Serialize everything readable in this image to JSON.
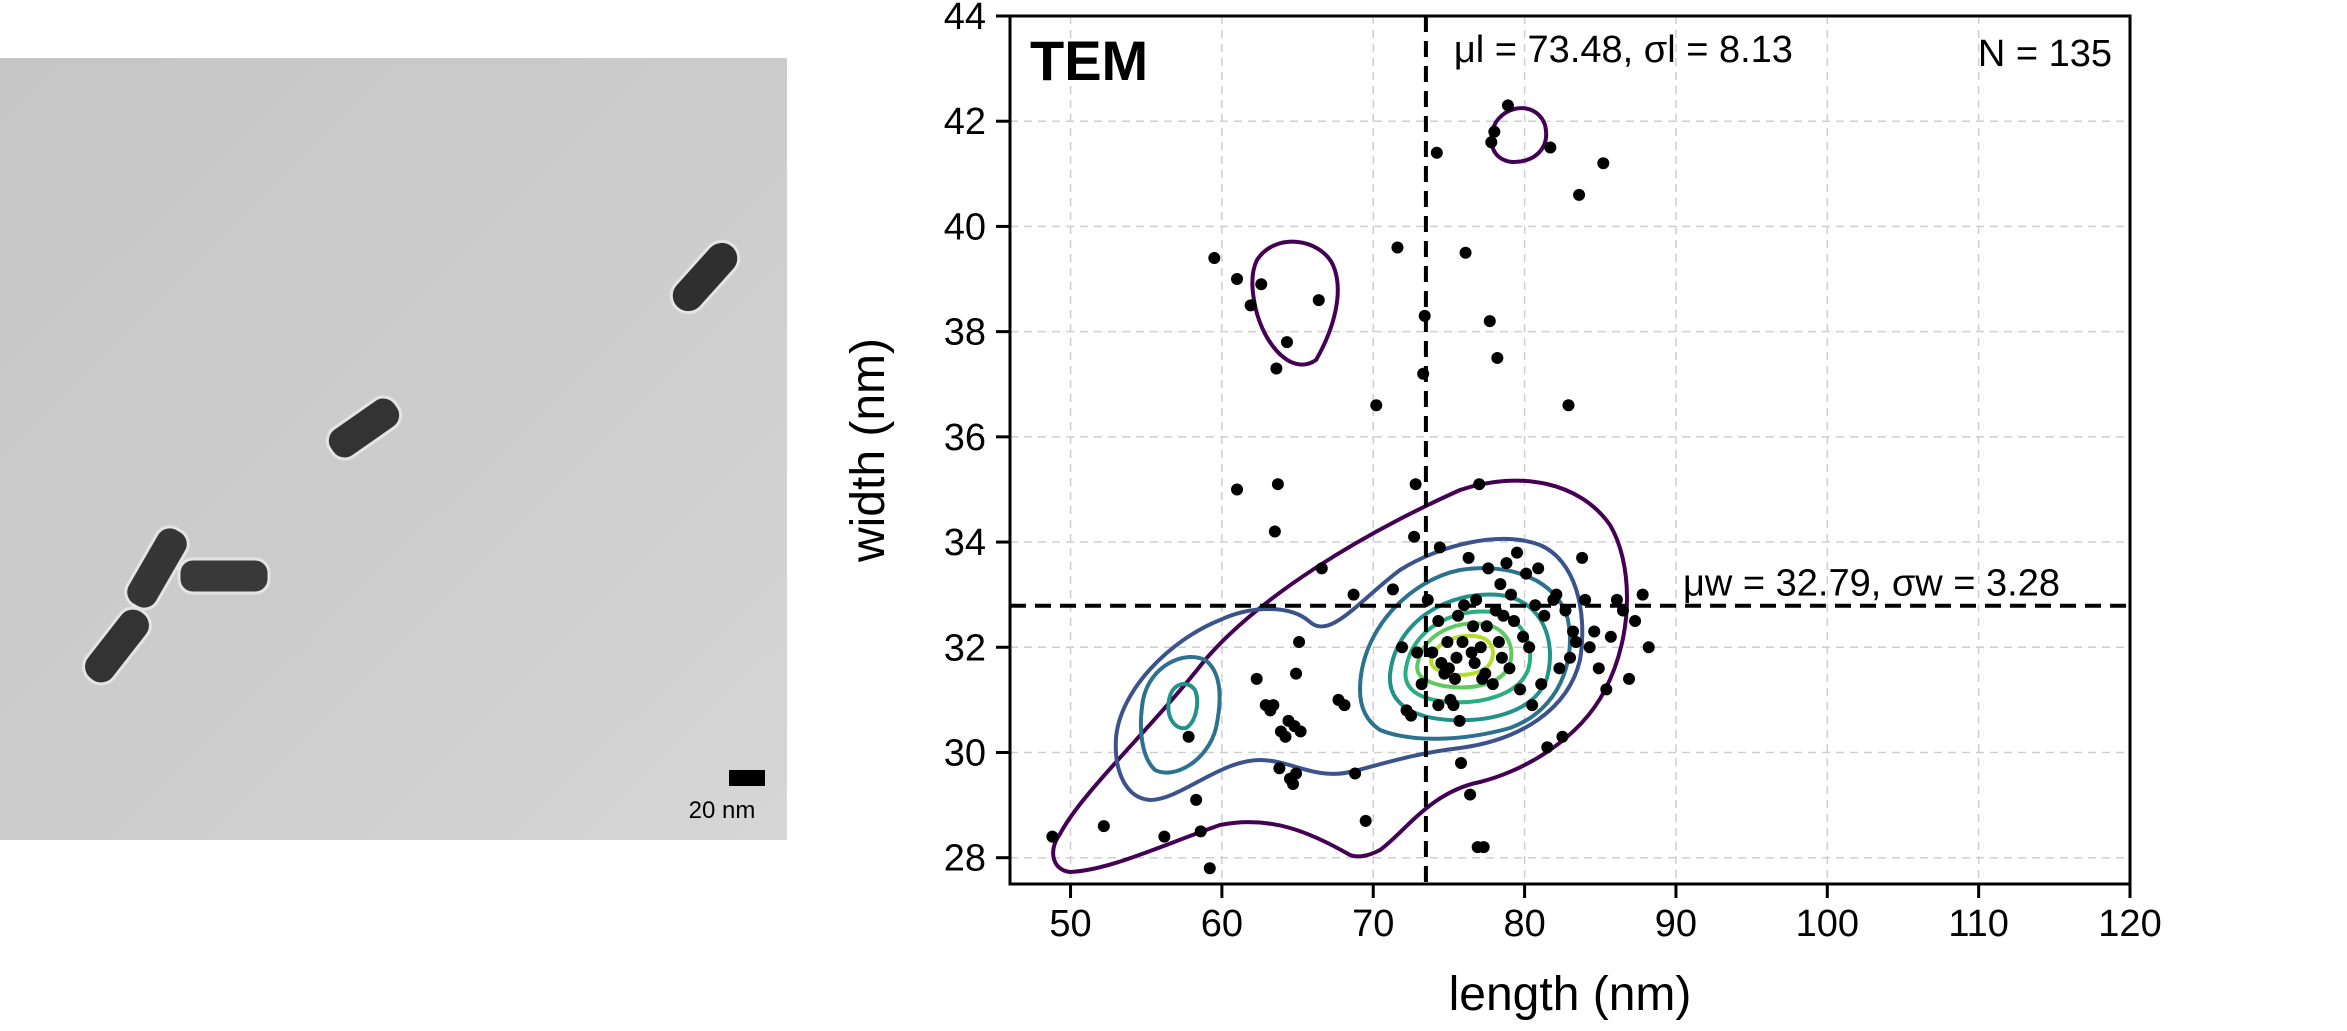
{
  "tem_image": {
    "scale_bar_label": "20 nm",
    "colors": {
      "background": "#cfcfcf",
      "rod": "#4a4a4a",
      "scale_bar": "#000000"
    }
  },
  "chart_data": {
    "type": "scatter",
    "xlabel": "length (nm)",
    "ylabel": "width (nm)",
    "xlim": [
      46,
      120
    ],
    "ylim": [
      27.5,
      44
    ],
    "x_ticks": [
      50,
      60,
      70,
      80,
      90,
      100,
      110,
      120
    ],
    "y_ticks": [
      28,
      30,
      32,
      34,
      36,
      38,
      40,
      42,
      44
    ],
    "grid": true,
    "panel_label": "TEM",
    "n_label": "N = 135",
    "mean_length": 73.48,
    "std_length": 8.13,
    "mean_width": 32.79,
    "std_width": 3.28,
    "length_annotation": "μl = 73.48, σl = 8.13",
    "width_annotation": "μw = 32.79, σw = 3.28",
    "points": [
      [
        48.8,
        28.4
      ],
      [
        52.2,
        28.6
      ],
      [
        56.2,
        28.4
      ],
      [
        57.8,
        30.3
      ],
      [
        58.3,
        29.1
      ],
      [
        58.6,
        28.5
      ],
      [
        59.2,
        27.8
      ],
      [
        59.5,
        39.4
      ],
      [
        61.0,
        35.0
      ],
      [
        61.0,
        39.0
      ],
      [
        61.9,
        38.5
      ],
      [
        62.3,
        31.4
      ],
      [
        62.6,
        38.9
      ],
      [
        62.9,
        30.9
      ],
      [
        63.2,
        30.8
      ],
      [
        63.4,
        30.9
      ],
      [
        63.5,
        34.2
      ],
      [
        63.6,
        37.3
      ],
      [
        63.7,
        35.1
      ],
      [
        63.8,
        29.7
      ],
      [
        63.9,
        30.4
      ],
      [
        64.2,
        30.3
      ],
      [
        64.3,
        37.8
      ],
      [
        64.4,
        30.6
      ],
      [
        64.5,
        29.5
      ],
      [
        64.7,
        29.4
      ],
      [
        64.8,
        30.5
      ],
      [
        64.9,
        31.5
      ],
      [
        64.9,
        29.6
      ],
      [
        65.1,
        32.1
      ],
      [
        65.2,
        30.4
      ],
      [
        66.4,
        38.6
      ],
      [
        66.6,
        33.5
      ],
      [
        67.7,
        31.0
      ],
      [
        68.1,
        30.9
      ],
      [
        68.7,
        33.0
      ],
      [
        68.8,
        29.6
      ],
      [
        69.5,
        28.7
      ],
      [
        70.2,
        36.6
      ],
      [
        71.3,
        33.1
      ],
      [
        71.6,
        39.6
      ],
      [
        71.9,
        32.0
      ],
      [
        72.2,
        30.8
      ],
      [
        72.5,
        30.7
      ],
      [
        72.7,
        34.1
      ],
      [
        72.8,
        35.1
      ],
      [
        72.9,
        31.9
      ],
      [
        73.2,
        31.3
      ],
      [
        73.3,
        37.2
      ],
      [
        73.4,
        38.3
      ],
      [
        73.6,
        32.9
      ],
      [
        73.9,
        31.9
      ],
      [
        74.2,
        41.4
      ],
      [
        74.3,
        30.9
      ],
      [
        74.3,
        32.5
      ],
      [
        74.4,
        33.9
      ],
      [
        74.5,
        31.7
      ],
      [
        74.7,
        31.5
      ],
      [
        74.9,
        32.1
      ],
      [
        75.0,
        31.6
      ],
      [
        75.1,
        31.0
      ],
      [
        75.3,
        30.9
      ],
      [
        75.4,
        31.4
      ],
      [
        75.5,
        31.8
      ],
      [
        75.6,
        32.6
      ],
      [
        75.7,
        30.6
      ],
      [
        75.8,
        29.8
      ],
      [
        75.9,
        32.1
      ],
      [
        76.0,
        32.8
      ],
      [
        76.1,
        39.5
      ],
      [
        76.3,
        33.7
      ],
      [
        76.4,
        29.2
      ],
      [
        76.5,
        31.9
      ],
      [
        76.6,
        32.4
      ],
      [
        76.7,
        31.7
      ],
      [
        76.8,
        32.9
      ],
      [
        76.9,
        28.2
      ],
      [
        77.0,
        35.1
      ],
      [
        77.1,
        32.0
      ],
      [
        77.2,
        31.4
      ],
      [
        77.3,
        28.2
      ],
      [
        77.4,
        31.5
      ],
      [
        77.5,
        32.4
      ],
      [
        77.6,
        33.5
      ],
      [
        77.7,
        38.2
      ],
      [
        77.8,
        41.6
      ],
      [
        77.9,
        31.3
      ],
      [
        78.0,
        41.8
      ],
      [
        78.1,
        32.7
      ],
      [
        78.2,
        37.5
      ],
      [
        78.3,
        32.1
      ],
      [
        78.4,
        33.2
      ],
      [
        78.5,
        31.8
      ],
      [
        78.6,
        32.6
      ],
      [
        78.8,
        33.6
      ],
      [
        78.9,
        42.3
      ],
      [
        79.0,
        31.6
      ],
      [
        79.1,
        33.0
      ],
      [
        79.3,
        32.5
      ],
      [
        79.5,
        33.8
      ],
      [
        79.7,
        31.2
      ],
      [
        79.9,
        32.2
      ],
      [
        80.1,
        33.4
      ],
      [
        80.3,
        32.0
      ],
      [
        80.5,
        30.9
      ],
      [
        80.7,
        32.8
      ],
      [
        80.9,
        33.5
      ],
      [
        81.1,
        31.3
      ],
      [
        81.3,
        32.6
      ],
      [
        81.5,
        30.1
      ],
      [
        81.7,
        41.5
      ],
      [
        81.9,
        32.9
      ],
      [
        82.1,
        33.0
      ],
      [
        82.3,
        31.6
      ],
      [
        82.5,
        30.3
      ],
      [
        82.7,
        32.7
      ],
      [
        82.9,
        36.6
      ],
      [
        83.0,
        31.8
      ],
      [
        83.2,
        32.3
      ],
      [
        83.4,
        32.1
      ],
      [
        83.6,
        40.6
      ],
      [
        83.8,
        33.7
      ],
      [
        84.0,
        32.9
      ],
      [
        84.3,
        32.0
      ],
      [
        84.6,
        32.3
      ],
      [
        84.9,
        31.6
      ],
      [
        85.2,
        41.2
      ],
      [
        85.4,
        31.2
      ],
      [
        85.7,
        32.2
      ],
      [
        86.1,
        32.9
      ],
      [
        86.5,
        32.7
      ],
      [
        86.9,
        31.4
      ],
      [
        87.3,
        32.5
      ],
      [
        87.8,
        33.0
      ],
      [
        88.2,
        32.0
      ]
    ],
    "contour_colors": [
      "#440154",
      "#3b528b",
      "#2c728e",
      "#21918c",
      "#28ae80",
      "#5ec962",
      "#b5de2b"
    ]
  }
}
